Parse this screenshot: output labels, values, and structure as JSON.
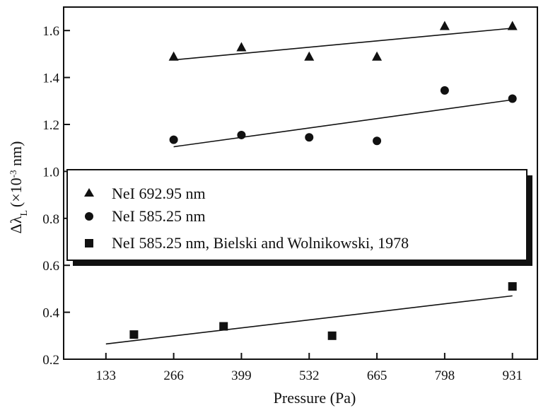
{
  "chart_data": {
    "type": "scatter",
    "xlabel": "Pressure (Pa)",
    "ylabel": "Δλ_L (×10⁻³ nm)",
    "ylabel_parts": {
      "main": "Δλ",
      "sub": "L",
      "pre": "(×10",
      "sup": "-3",
      "post": " nm)"
    },
    "xlim": [
      50,
      980
    ],
    "ylim": [
      0.2,
      1.7
    ],
    "xticks": [
      133,
      266,
      399,
      532,
      665,
      798,
      931
    ],
    "yticks": [
      0.2,
      0.4,
      0.6,
      0.8,
      1.0,
      1.2,
      1.4,
      1.6
    ],
    "ytick_labels": [
      "0.2",
      "0.4",
      "0.6",
      "0.8",
      "1.0",
      "1.2",
      "1.4",
      "1.6"
    ],
    "legend_position": "middle-left",
    "series": [
      {
        "name": "NeI 692.95 nm",
        "marker": "triangle",
        "points": [
          [
            266,
            1.49
          ],
          [
            399,
            1.53
          ],
          [
            532,
            1.49
          ],
          [
            665,
            1.49
          ],
          [
            798,
            1.62
          ],
          [
            931,
            1.62
          ]
        ],
        "fit": [
          [
            266,
            1.475
          ],
          [
            931,
            1.61
          ]
        ]
      },
      {
        "name": "NeI 585.25 nm",
        "marker": "circle",
        "points": [
          [
            266,
            1.135
          ],
          [
            399,
            1.155
          ],
          [
            532,
            1.145
          ],
          [
            665,
            1.13
          ],
          [
            798,
            1.345
          ],
          [
            931,
            1.31
          ]
        ],
        "fit": [
          [
            266,
            1.105
          ],
          [
            931,
            1.305
          ]
        ]
      },
      {
        "name": "NeI 585.25 nm, Bielski and Wolnikowski, 1978",
        "marker": "square",
        "points": [
          [
            188,
            0.305
          ],
          [
            364,
            0.34
          ],
          [
            577,
            0.3
          ],
          [
            931,
            0.51
          ]
        ],
        "fit": [
          [
            133,
            0.265
          ],
          [
            931,
            0.47
          ]
        ]
      }
    ]
  }
}
